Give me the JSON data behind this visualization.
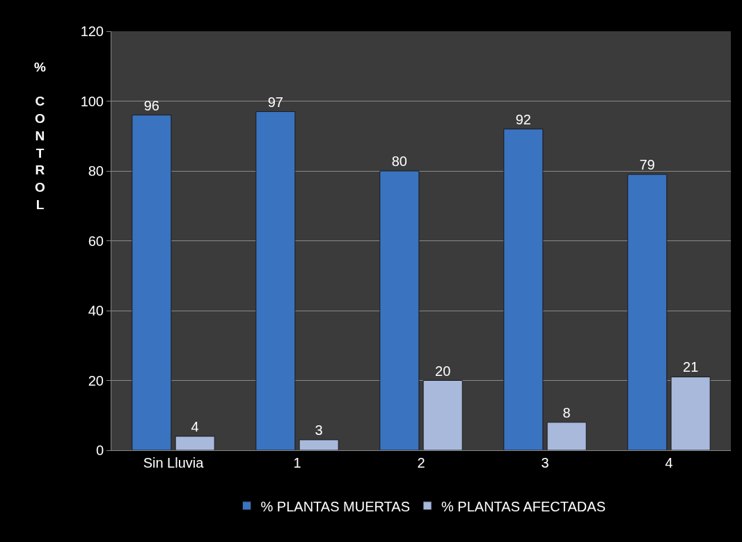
{
  "chart_data": {
    "type": "bar",
    "ylabel": "% CONTROL",
    "categories": [
      "Sin Lluvia",
      "1",
      "2",
      "3",
      "4"
    ],
    "series": [
      {
        "name": "% PLANTAS MUERTAS",
        "color": "#3a73c0",
        "values": [
          96,
          97,
          80,
          92,
          79
        ]
      },
      {
        "name": "% PLANTAS AFECTADAS",
        "color": "#a8b9dc",
        "values": [
          4,
          3,
          20,
          8,
          21
        ]
      }
    ],
    "ylim": [
      0,
      120
    ],
    "yticks": [
      0,
      20,
      40,
      60,
      80,
      100,
      120
    ],
    "grid": "y",
    "legend": "bottom",
    "data_labels": true
  }
}
